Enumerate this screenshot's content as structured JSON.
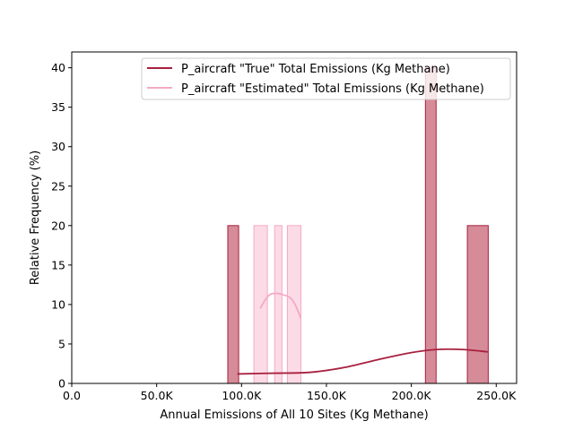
{
  "chart_data": {
    "type": "histogram",
    "xlabel": "Annual Emissions of All 10 Sites (Kg Methane)",
    "ylabel": "Relative Frequency (%)",
    "xlim": [
      0,
      262000
    ],
    "ylim": [
      0,
      42
    ],
    "x_ticks": [
      {
        "value": 0,
        "label": "0.0"
      },
      {
        "value": 50000,
        "label": "50.0K"
      },
      {
        "value": 100000,
        "label": "100.0K"
      },
      {
        "value": 150000,
        "label": "150.0K"
      },
      {
        "value": 200000,
        "label": "200.0K"
      },
      {
        "value": 250000,
        "label": "250.0K"
      }
    ],
    "y_ticks": [
      {
        "value": 0,
        "label": "0"
      },
      {
        "value": 5,
        "label": "5"
      },
      {
        "value": 10,
        "label": "10"
      },
      {
        "value": 15,
        "label": "15"
      },
      {
        "value": 20,
        "label": "20"
      },
      {
        "value": 25,
        "label": "25"
      },
      {
        "value": 30,
        "label": "30"
      },
      {
        "value": 35,
        "label": "35"
      },
      {
        "value": 40,
        "label": "40"
      }
    ],
    "legend_position": "top-right",
    "series": [
      {
        "name": "P_aircraft \"True\" Total Emissions (Kg Methane)",
        "line_color": "#a8203f",
        "bar_fill": "#d68b98",
        "bar_edge": "#a8203f",
        "bars": [
          {
            "x0": 91900,
            "x1": 98300,
            "height": 20
          },
          {
            "x0": 208300,
            "x1": 214600,
            "height": 40
          },
          {
            "x0": 233000,
            "x1": 245300,
            "height": 20
          }
        ],
        "kde": [
          [
            97500,
            1.2
          ],
          [
            120000,
            1.3
          ],
          [
            140000,
            1.4
          ],
          [
            160000,
            2.0
          ],
          [
            180000,
            3.0
          ],
          [
            200000,
            3.9
          ],
          [
            215000,
            4.3
          ],
          [
            230000,
            4.3
          ],
          [
            245000,
            4.0
          ]
        ]
      },
      {
        "name": "P_aircraft \"Estimated\" Total Emissions (Kg Methane)",
        "line_color": "#f4a9c4",
        "bar_fill": "#fcdbe7",
        "bar_edge": "#f4a9c4",
        "bars": [
          {
            "x0": 107300,
            "x1": 115200,
            "height": 20
          },
          {
            "x0": 119500,
            "x1": 123800,
            "height": 20
          },
          {
            "x0": 127000,
            "x1": 135000,
            "height": 20
          }
        ],
        "kde": [
          [
            111000,
            9.5
          ],
          [
            114000,
            10.6
          ],
          [
            117000,
            11.3
          ],
          [
            121000,
            11.4
          ],
          [
            125000,
            11.2
          ],
          [
            129000,
            10.8
          ],
          [
            132000,
            9.8
          ],
          [
            135000,
            8.2
          ]
        ]
      }
    ]
  }
}
